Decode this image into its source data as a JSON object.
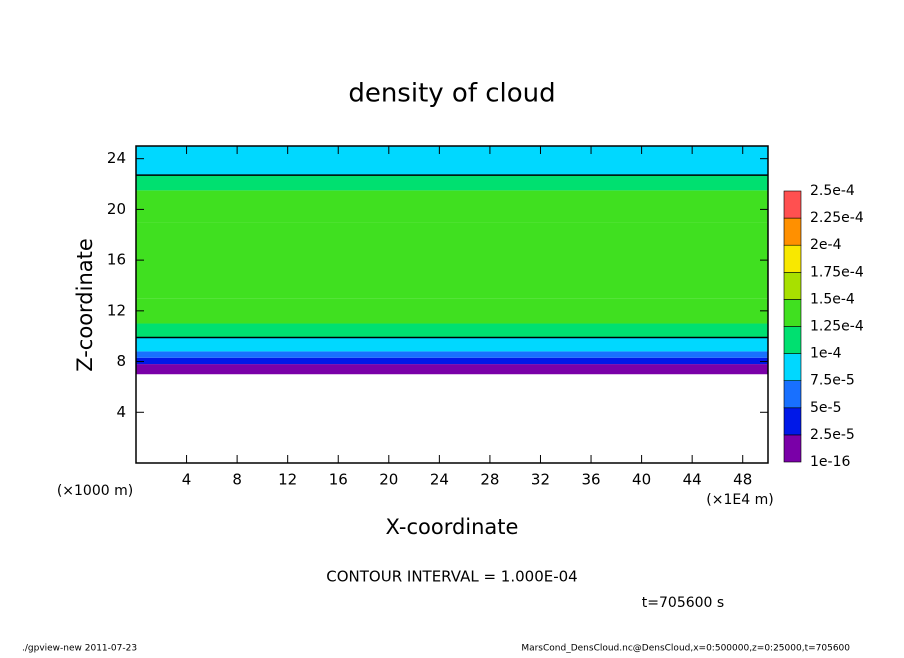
{
  "chart_data": {
    "type": "contour",
    "title": "density of cloud",
    "x_label": "X-coordinate",
    "y_label": "Z-coordinate",
    "y_unit": "(×1000 m)",
    "x_unit": "(×1E4 m)",
    "xlim": [
      0,
      50
    ],
    "xticks": [
      4,
      8,
      12,
      16,
      20,
      24,
      28,
      32,
      36,
      40,
      44,
      48
    ],
    "ylim": [
      0,
      25
    ],
    "yticks": [
      4,
      8,
      12,
      16,
      20,
      24
    ],
    "profile": {
      "z_edges": [
        7,
        7.8,
        8.3,
        8.8,
        9.9,
        11,
        13,
        19,
        21.5,
        22.7,
        25
      ],
      "values": [
        1e-05,
        3.5e-05,
        6e-05,
        8.8e-05,
        0.000115,
        0.00013,
        0.00014,
        0.000128,
        0.00011,
        9.6e-05
      ]
    },
    "levels": [
      {
        "value": 1e-16,
        "label": "1e-16"
      },
      {
        "value": 2.5e-05,
        "label": "2.5e-5"
      },
      {
        "value": 5e-05,
        "label": "5e-5"
      },
      {
        "value": 7.5e-05,
        "label": "7.5e-5"
      },
      {
        "value": 0.0001,
        "label": "1e-4"
      },
      {
        "value": 0.000125,
        "label": "1.25e-4"
      },
      {
        "value": 0.00015,
        "label": "1.5e-4"
      },
      {
        "value": 0.000175,
        "label": "1.75e-4"
      },
      {
        "value": 0.0002,
        "label": "2e-4"
      },
      {
        "value": 0.000225,
        "label": "2.25e-4"
      },
      {
        "value": 0.00025,
        "label": "2.5e-4"
      }
    ],
    "level_colors": [
      "#7a00a8",
      "#0018e8",
      "#1870ff",
      "#00d8ff",
      "#00e070",
      "#40e020",
      "#a8e000",
      "#f8e800",
      "#ff9000",
      "#ff5050"
    ],
    "contour_value": 0.0001,
    "contour_note": "CONTOUR INTERVAL = 1.000E-04",
    "time_note": "t=705600 s",
    "footer_left": "./gpview-new  2011-07-23",
    "footer_right": "MarsCond_DensCloud.nc@DensCloud,x=0:500000,z=0:25000,t=705600"
  }
}
